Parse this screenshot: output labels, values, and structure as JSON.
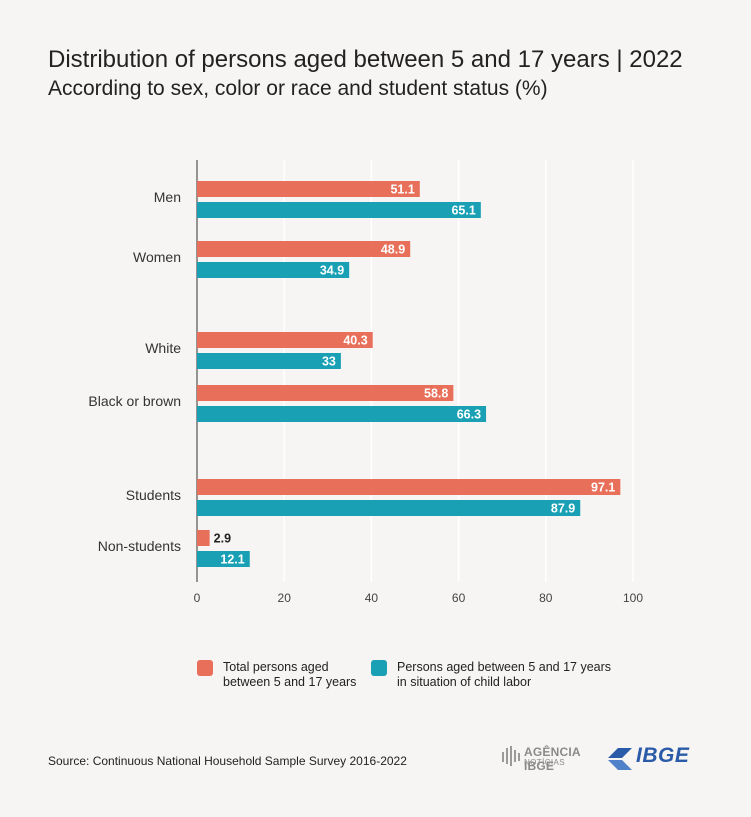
{
  "title": "Distribution of persons aged between 5 and 17 years | 2022",
  "subtitle": "According to sex, color or race and student status (%)",
  "source": "Source: Continuous National Household Sample Survey 2016-2022",
  "logos": {
    "agencia": "AGÊNCIA IBGE",
    "agencia_sub": "NOTÍCIAS",
    "ibge": "IBGE"
  },
  "colors": {
    "series1": "#e8705a",
    "series2": "#19a0b5",
    "grid": "#ffffff",
    "background": "#f7f5f3"
  },
  "chart_data": {
    "type": "bar",
    "orientation": "horizontal",
    "categories": [
      "Men",
      "Women",
      "White",
      "Black or brown",
      "Students",
      "Non-students"
    ],
    "groups": [
      [
        "Men",
        "Women"
      ],
      [
        "White",
        "Black or brown"
      ],
      [
        "Students",
        "Non-students"
      ]
    ],
    "series": [
      {
        "name": "Total persons aged between 5 and 17 years",
        "values": [
          51.1,
          48.9,
          40.3,
          58.8,
          97.1,
          2.9
        ]
      },
      {
        "name": "Persons aged between 5 and 17 years in situation of child labor",
        "values": [
          65.1,
          34.9,
          33,
          66.3,
          87.9,
          12.1
        ]
      }
    ],
    "value_labels": [
      [
        "51.1",
        "48.9",
        "40.3",
        "58.8",
        "97.1",
        "2.9"
      ],
      [
        "65.1",
        "34.9",
        "33",
        "66.3",
        "87.9",
        "12.1"
      ]
    ],
    "xlim": [
      0,
      100
    ],
    "xticks": [
      "0",
      "20",
      "40",
      "60",
      "80",
      "100"
    ],
    "xlabel": "",
    "ylabel": "",
    "grid": true,
    "legend_position": "bottom"
  },
  "legend": [
    {
      "line1": "Total persons aged",
      "line2": "between 5 and 17 years"
    },
    {
      "line1": "Persons aged between 5 and 17 years",
      "line2": "in situation of child labor"
    }
  ]
}
